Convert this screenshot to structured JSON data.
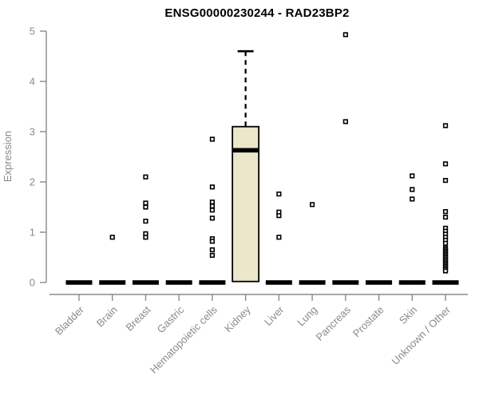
{
  "chart_data": {
    "type": "boxplot",
    "title": "ENSG00000230244 - RAD23BP2",
    "ylabel": "Expression",
    "xlabel": "",
    "ylim": [
      0,
      5
    ],
    "yticks": [
      0,
      1,
      2,
      3,
      4,
      5
    ],
    "grid": false,
    "legend": "none",
    "colors": {
      "box_fill": "#ECE6CA",
      "box_border": "#000000",
      "data": "#000000",
      "axis": "#8A8A8A",
      "text": "#8A8A8A",
      "title": "#000000",
      "background": "#FFFFFF"
    },
    "categories": [
      "Bladder",
      "Brain",
      "Breast",
      "Gastric",
      "Hematopoietic cells",
      "Kidney",
      "Liver",
      "Lung",
      "Pancreas",
      "Prostate",
      "Skin",
      "Unknown / Other"
    ],
    "boxes": [
      {
        "category": "Bladder",
        "median": 0,
        "q1": 0,
        "q3": 0,
        "whisker_low": 0,
        "whisker_high": 0,
        "outliers": []
      },
      {
        "category": "Brain",
        "median": 0,
        "q1": 0,
        "q3": 0,
        "whisker_low": 0,
        "whisker_high": 0,
        "outliers": [
          0.9
        ]
      },
      {
        "category": "Breast",
        "median": 0,
        "q1": 0,
        "q3": 0,
        "whisker_low": 0,
        "whisker_high": 0,
        "outliers": [
          2.1,
          1.58,
          1.5,
          1.22,
          0.97,
          0.9
        ]
      },
      {
        "category": "Gastric",
        "median": 0,
        "q1": 0,
        "q3": 0,
        "whisker_low": 0,
        "whisker_high": 0,
        "outliers": []
      },
      {
        "category": "Hematopoietic cells",
        "median": 0,
        "q1": 0,
        "q3": 0,
        "whisker_low": 0,
        "whisker_high": 0,
        "outliers": [
          2.85,
          1.9,
          1.6,
          1.52,
          1.44,
          1.28,
          0.87,
          0.82,
          0.65,
          0.54
        ]
      },
      {
        "category": "Kidney",
        "median": 2.63,
        "q1": 0.02,
        "q3": 3.1,
        "whisker_low": 0,
        "whisker_high": 4.6,
        "outliers": []
      },
      {
        "category": "Liver",
        "median": 0,
        "q1": 0,
        "q3": 0,
        "whisker_low": 0,
        "whisker_high": 0,
        "outliers": [
          1.76,
          1.4,
          1.33,
          0.9
        ]
      },
      {
        "category": "Lung",
        "median": 0,
        "q1": 0,
        "q3": 0,
        "whisker_low": 0,
        "whisker_high": 0,
        "outliers": [
          1.55
        ]
      },
      {
        "category": "Pancreas",
        "median": 0,
        "q1": 0,
        "q3": 0,
        "whisker_low": 0,
        "whisker_high": 0,
        "outliers": [
          4.93,
          3.2
        ]
      },
      {
        "category": "Prostate",
        "median": 0,
        "q1": 0,
        "q3": 0,
        "whisker_low": 0,
        "whisker_high": 0,
        "outliers": []
      },
      {
        "category": "Skin",
        "median": 0,
        "q1": 0,
        "q3": 0,
        "whisker_low": 0,
        "whisker_high": 0,
        "outliers": [
          2.12,
          1.85,
          1.66
        ]
      },
      {
        "category": "Unknown / Other",
        "median": 0,
        "q1": 0,
        "q3": 0,
        "whisker_low": 0,
        "whisker_high": 0,
        "outliers": [
          3.12,
          2.36,
          2.03,
          1.41,
          1.3,
          1.08,
          1.02,
          0.96,
          0.9,
          0.84,
          0.78,
          0.68,
          0.65,
          0.62,
          0.59,
          0.56,
          0.53,
          0.5,
          0.47,
          0.44,
          0.41,
          0.38,
          0.35,
          0.32,
          0.29,
          0.26,
          0.23
        ]
      }
    ]
  }
}
